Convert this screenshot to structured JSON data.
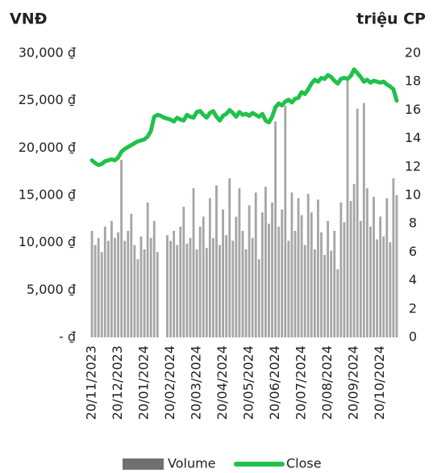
{
  "chart_data": {
    "type": "bar_line",
    "ylabel": "VNĐ",
    "y2label": "triệu CP",
    "categories": [
      "20/11/2023",
      null,
      null,
      null,
      null,
      null,
      null,
      null,
      "20/12/2023",
      null,
      null,
      null,
      null,
      null,
      null,
      null,
      "20/01/2024",
      null,
      null,
      null,
      null,
      null,
      null,
      null,
      "20/02/2024",
      null,
      null,
      null,
      null,
      null,
      null,
      null,
      "20/03/2024",
      null,
      null,
      null,
      null,
      null,
      null,
      null,
      "20/04/2024",
      null,
      null,
      null,
      null,
      null,
      null,
      null,
      "20/05/2024",
      null,
      null,
      null,
      null,
      null,
      null,
      null,
      "20/06/2024",
      null,
      null,
      null,
      null,
      null,
      null,
      null,
      "20/07/2024",
      null,
      null,
      null,
      null,
      null,
      null,
      null,
      "20/08/2024",
      null,
      null,
      null,
      null,
      null,
      null,
      null,
      "20/09/2024",
      null,
      null,
      null,
      null,
      null,
      null,
      null,
      "20/10/2024",
      null,
      null,
      null,
      null,
      null
    ],
    "series": [
      {
        "name": "Volume",
        "color": "#a6a6a6",
        "axis": "y2",
        "kind": "bar",
        "values": [
          7.5,
          6.5,
          7,
          6,
          7.8,
          6.8,
          8.2,
          7,
          7.4,
          12.5,
          6.8,
          7.5,
          8.7,
          6.5,
          5.5,
          7.1,
          6.2,
          9.5,
          7,
          8.2,
          6,
          null,
          null,
          7.2,
          6.8,
          7.5,
          6.5,
          7.8,
          9.2,
          6.6,
          7,
          10.5,
          6.2,
          7.8,
          8.5,
          6.3,
          9.8,
          7,
          10.7,
          6.5,
          9,
          7.2,
          11.2,
          6.8,
          8.5,
          10.5,
          7.5,
          6.2,
          9.3,
          7,
          10.2,
          5.5,
          8.8,
          10.6,
          8,
          9.5,
          15.2,
          7.8,
          9,
          16.3,
          6.8,
          10.2,
          7.5,
          9.8,
          8.6,
          6.5,
          10.1,
          8.8,
          6.2,
          9.7,
          7.4,
          5.8,
          8.2,
          6.1,
          7.5,
          4.8,
          9.5,
          8.1,
          18.3,
          9.6,
          10.8,
          16.1,
          8.2,
          16.5,
          10.5,
          7.8,
          9.9,
          6.9,
          8.5,
          7.1,
          9.8,
          6.7,
          11.2,
          10
        ]
      },
      {
        "name": "Close",
        "color": "#1fc24a",
        "axis": "y",
        "kind": "line",
        "values": [
          18700,
          18400,
          18200,
          18300,
          18600,
          18700,
          18800,
          18700,
          19000,
          19600,
          19900,
          20100,
          20300,
          20500,
          20700,
          20800,
          20900,
          21200,
          21800,
          23300,
          23500,
          23400,
          23200,
          23100,
          23000,
          22800,
          23200,
          23000,
          22900,
          23500,
          23300,
          23200,
          23800,
          23900,
          23500,
          23200,
          23700,
          23900,
          23300,
          22900,
          23400,
          23600,
          24000,
          23700,
          23300,
          23800,
          23500,
          23600,
          23400,
          23700,
          23500,
          23300,
          23600,
          22900,
          22700,
          23300,
          24300,
          24700,
          24500,
          24900,
          25100,
          24800,
          25200,
          25300,
          25900,
          25700,
          26200,
          26800,
          27200,
          27000,
          27400,
          27300,
          27700,
          27500,
          27100,
          26800,
          27300,
          27400,
          27300,
          27600,
          28300,
          27900,
          27500,
          27000,
          27200,
          26900,
          27100,
          27000,
          26900,
          27000,
          26700,
          26500,
          26200,
          25000
        ]
      }
    ],
    "ylim": [
      0,
      30000
    ],
    "yticks": [
      {
        "value": 0,
        "label": "- ₫"
      },
      {
        "value": 5000,
        "label": "5,000 ₫"
      },
      {
        "value": 10000,
        "label": "10,000 ₫"
      },
      {
        "value": 15000,
        "label": "15,000 ₫"
      },
      {
        "value": 20000,
        "label": "20,000 ₫"
      },
      {
        "value": 25000,
        "label": "25,000 ₫"
      },
      {
        "value": 30000,
        "label": "30,000 ₫"
      }
    ],
    "y2lim": [
      0,
      20
    ],
    "y2ticks": [
      0,
      2,
      4,
      6,
      8,
      10,
      12,
      14,
      16,
      18,
      20
    ],
    "grid": false
  }
}
